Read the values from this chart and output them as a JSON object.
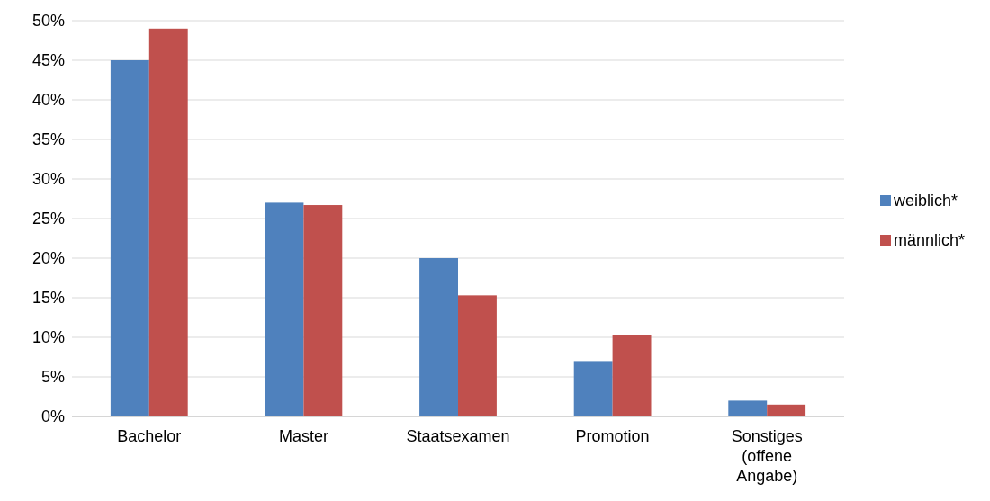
{
  "chart_data": {
    "type": "bar",
    "categories": [
      "Bachelor",
      "Master",
      "Staatsexamen",
      "Promotion",
      "Sonstiges (offene Angabe)"
    ],
    "series": [
      {
        "name": "weiblich*",
        "color": "#4f81bd",
        "values": [
          45,
          27,
          20,
          7,
          2
        ]
      },
      {
        "name": "männlich*",
        "color": "#c0504d",
        "values": [
          49,
          26.7,
          15.3,
          10.3,
          1.5
        ]
      }
    ],
    "ylim": [
      0,
      50
    ],
    "yticks": [
      {
        "value": 0,
        "label": "0%"
      },
      {
        "value": 5,
        "label": "5%"
      },
      {
        "value": 10,
        "label": "10%"
      },
      {
        "value": 15,
        "label": "15%"
      },
      {
        "value": 20,
        "label": "20%"
      },
      {
        "value": 25,
        "label": "25%"
      },
      {
        "value": 30,
        "label": "30%"
      },
      {
        "value": 35,
        "label": "35%"
      },
      {
        "value": 40,
        "label": "40%"
      },
      {
        "value": 45,
        "label": "45%"
      },
      {
        "value": 50,
        "label": "50%"
      }
    ],
    "grid": "y",
    "legend": "right"
  }
}
